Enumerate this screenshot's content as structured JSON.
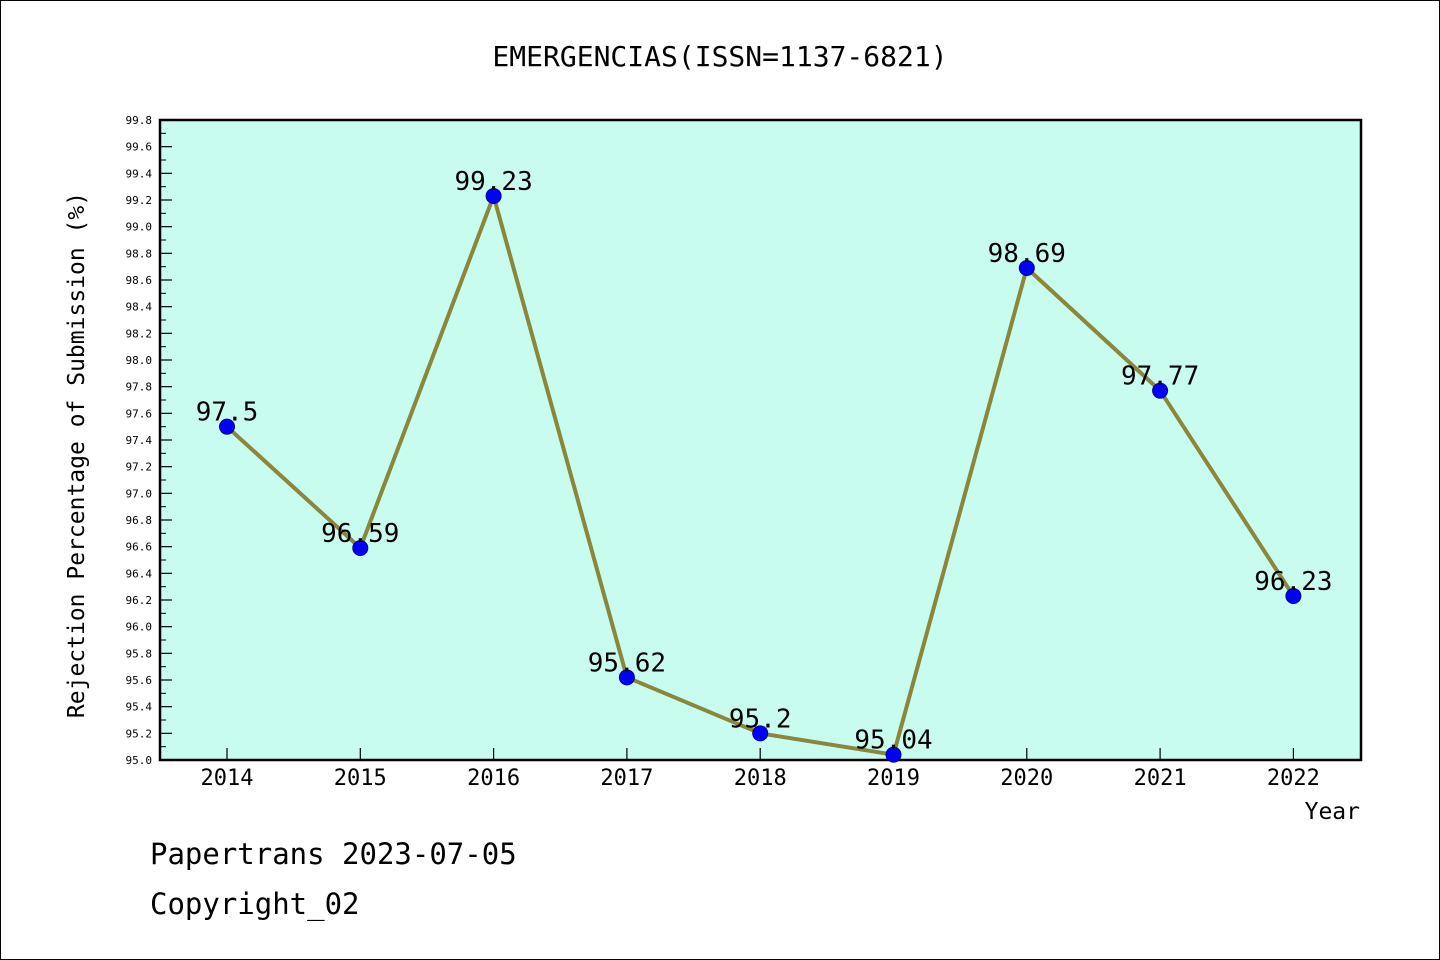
{
  "chart_data": {
    "type": "line",
    "title": "EMERGENCIAS(ISSN=1137-6821)",
    "xlabel": "Year",
    "ylabel": "Rejection Percentage of Submission (%)",
    "categories": [
      "2014",
      "2015",
      "2016",
      "2017",
      "2018",
      "2019",
      "2020",
      "2021",
      "2022"
    ],
    "series": [
      {
        "values": [
          97.5,
          96.59,
          99.23,
          95.62,
          95.2,
          95.04,
          98.69,
          97.77,
          96.23
        ],
        "labels": [
          "97.5",
          "96.59",
          "99.23",
          "95.62",
          "95.2",
          "95.04",
          "98.69",
          "97.77",
          "96.23"
        ]
      }
    ],
    "ylim": [
      95.0,
      99.8
    ],
    "yticks": [
      "95.0",
      "95.2",
      "95.4",
      "95.6",
      "95.8",
      "96.0",
      "96.2",
      "96.4",
      "96.6",
      "96.8",
      "97.0",
      "97.2",
      "97.4",
      "97.6",
      "97.8",
      "98.0",
      "98.2",
      "98.4",
      "98.6",
      "98.8",
      "99.0",
      "99.2",
      "99.4",
      "99.6",
      "99.8"
    ],
    "grid": false,
    "colors": {
      "plot_background": "#c8fcee",
      "line": "#8b863a",
      "marker": "#0000ff"
    }
  },
  "footer": {
    "line1": "Papertrans 2023-07-05",
    "line2": "Copyright_02"
  }
}
